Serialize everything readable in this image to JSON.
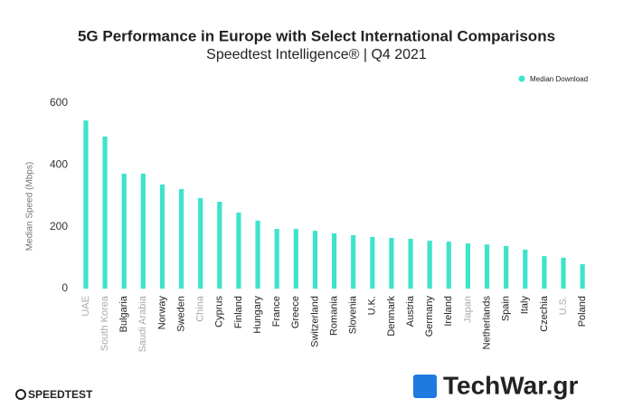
{
  "chart_data": {
    "type": "bar",
    "title": "5G Performance in Europe with Select International Comparisons",
    "subtitle": "Speedtest Intelligence® | Q4 2021",
    "y_label": "Median Speed (Mbps)",
    "categories": [
      "UAE",
      "South Korea",
      "Bulgaria",
      "Saudi Arabia",
      "Norway",
      "Sweden",
      "China",
      "Cyprus",
      "Finland",
      "Hungary",
      "France",
      "Greece",
      "Switzerland",
      "Romania",
      "Slovenia",
      "U.K.",
      "Denmark",
      "Austria",
      "Germany",
      "Ireland",
      "Japan",
      "Netherlands",
      "Spain",
      "Italy",
      "Czechia",
      "U.S.",
      "Poland"
    ],
    "category_colors": [
      "#aaaaaa",
      "#aaaaaa",
      "#222222",
      "#aaaaaa",
      "#222222",
      "#222222",
      "#aaaaaa",
      "#222222",
      "#222222",
      "#222222",
      "#222222",
      "#222222",
      "#222222",
      "#222222",
      "#222222",
      "#222222",
      "#222222",
      "#222222",
      "#222222",
      "#222222",
      "#aaaaaa",
      "#222222",
      "#222222",
      "#222222",
      "#222222",
      "#aaaaaa",
      "#222222"
    ],
    "series": [
      {
        "name": "Median Download",
        "color": "#3fe3cb",
        "values": [
          544,
          492,
          372,
          372,
          337,
          322,
          293,
          281,
          246,
          220,
          193,
          193,
          187,
          179,
          173,
          167,
          164,
          161,
          155,
          152,
          146,
          143,
          138,
          126,
          105,
          100,
          79
        ]
      }
    ],
    "ylim": [
      0,
      600
    ],
    "yticks": [
      0,
      200,
      400,
      600
    ],
    "grid": false,
    "legend": "top-right"
  },
  "branding": {
    "logo": "SPEEDTEST",
    "watermark": "TechWar.gr"
  }
}
